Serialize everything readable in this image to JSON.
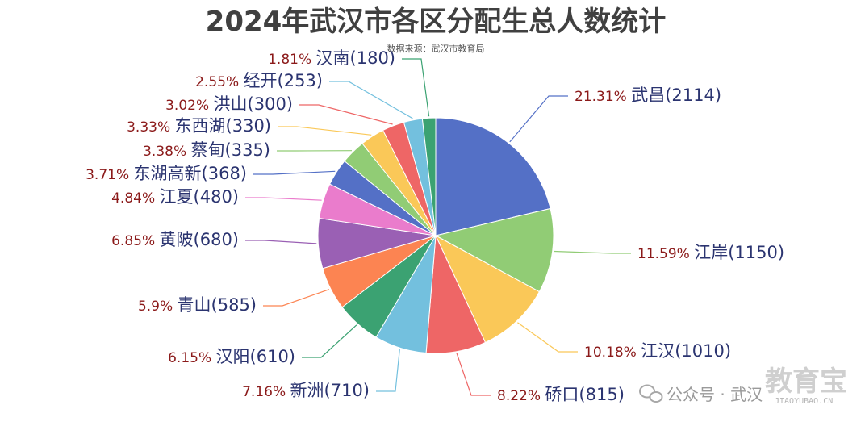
{
  "chart_data": {
    "type": "pie",
    "title": "2024年武汉市各区分配生总人数统计",
    "subtitle": "数据来源：武汉市教育局",
    "slices": [
      {
        "name": "武昌",
        "value": 2114,
        "percent_label": "21.31%",
        "count_label": "(2114)",
        "color": "#5470c6"
      },
      {
        "name": "江岸",
        "value": 1150,
        "percent_label": "11.59%",
        "count_label": "(1150)",
        "color": "#91cc75"
      },
      {
        "name": "江汉",
        "value": 1010,
        "percent_label": "10.18%",
        "count_label": "(1010)",
        "color": "#fac858"
      },
      {
        "name": "硚口",
        "value": 815,
        "percent_label": "8.22%",
        "count_label": "(815)",
        "color": "#ee6666"
      },
      {
        "name": "新洲",
        "value": 710,
        "percent_label": "7.16%",
        "count_label": "(710)",
        "color": "#73c0de"
      },
      {
        "name": "汉阳",
        "value": 610,
        "percent_label": "6.15%",
        "count_label": "(610)",
        "color": "#3ba272"
      },
      {
        "name": "青山",
        "value": 585,
        "percent_label": "5.9%",
        "count_label": "(585)",
        "color": "#fc8452"
      },
      {
        "name": "黄陂",
        "value": 680,
        "percent_label": "6.85%",
        "count_label": "(680)",
        "color": "#9a60b4"
      },
      {
        "name": "江夏",
        "value": 480,
        "percent_label": "4.84%",
        "count_label": "(480)",
        "color": "#ea7ccc"
      },
      {
        "name": "东湖高新",
        "value": 368,
        "percent_label": "3.71%",
        "count_label": "(368)",
        "color": "#5470c6"
      },
      {
        "name": "蔡甸",
        "value": 335,
        "percent_label": "3.38%",
        "count_label": "(335)",
        "color": "#91cc75"
      },
      {
        "name": "东西湖",
        "value": 330,
        "percent_label": "3.33%",
        "count_label": "(330)",
        "color": "#fac858"
      },
      {
        "name": "洪山",
        "value": 300,
        "percent_label": "3.02%",
        "count_label": "(300)",
        "color": "#ee6666"
      },
      {
        "name": "经开",
        "value": 253,
        "percent_label": "2.55%",
        "count_label": "(253)",
        "color": "#73c0de"
      },
      {
        "name": "汉南",
        "value": 180,
        "percent_label": "1.81%",
        "count_label": "(180)",
        "color": "#3ba272"
      }
    ]
  },
  "watermark": {
    "prefix": "公众号 · 武汉",
    "brand": "教育宝",
    "domain": "JIAOYUBAO.CN",
    "icon": "wechat-icon"
  }
}
